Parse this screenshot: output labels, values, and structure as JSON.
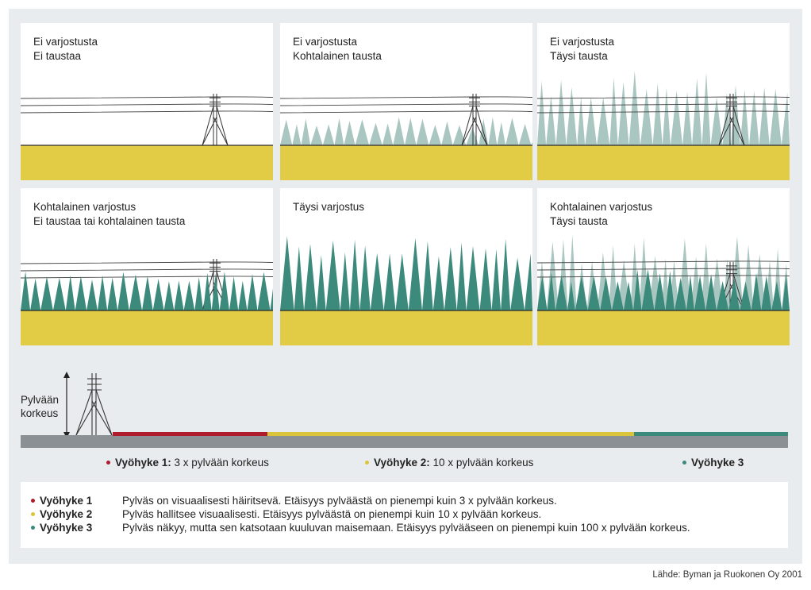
{
  "panels": [
    {
      "lines": [
        "Ei varjostusta",
        "Ei taustaa"
      ]
    },
    {
      "lines": [
        "Ei varjostusta",
        "Kohtalainen tausta"
      ]
    },
    {
      "lines": [
        "Ei varjostusta",
        "Täysi tausta"
      ]
    },
    {
      "lines": [
        "Kohtalainen varjostus",
        "Ei taustaa tai kohtalainen tausta"
      ]
    },
    {
      "lines": [
        "Täysi varjostus",
        ""
      ]
    },
    {
      "lines": [
        "Kohtalainen varjostus",
        "Täysi tausta"
      ]
    }
  ],
  "height_label": [
    "Pylvään",
    "korkeus"
  ],
  "zone_legend": [
    {
      "name": "Vyöhyke 1:",
      "text": " 3 x pylvään korkeus",
      "color": "#b01b2e"
    },
    {
      "name": "Vyöhyke 2:",
      "text": " 10 x pylvään korkeus",
      "color": "#d9c43a"
    },
    {
      "name": "Vyöhyke 3",
      "text": "",
      "color": "#3b8a7c"
    }
  ],
  "definitions": [
    {
      "name": "Vyöhyke 1",
      "text": "Pylväs on visuaalisesti häiritsevä. Etäisyys pylväästä on pienempi kuin 3 x pylvään korkeus.",
      "color": "#b01b2e"
    },
    {
      "name": "Vyöhyke 2",
      "text": "Pylväs hallitsee visuaalisesti. Etäisyys pylväästä on pienempi kuin 10 x pylvään korkeus.",
      "color": "#d9c43a"
    },
    {
      "name": "Vyöhyke 3",
      "text": "Pylväs näkyy, mutta sen katsotaan kuuluvan maisemaan. Etäisyys pylvääseen on pienempi kuin 100 x pylvään korkeus.",
      "color": "#3b8a7c"
    }
  ],
  "source": "Lähde: Byman ja Ruokonen Oy 2001",
  "colors": {
    "ground": "#e3cc45",
    "forest_dark": "#3b8a7c",
    "forest_light": "#a9c6c0",
    "zone1": "#b01b2e",
    "zone2": "#d9c43a",
    "zone3": "#3b8a7c",
    "track": "#8a9094"
  }
}
